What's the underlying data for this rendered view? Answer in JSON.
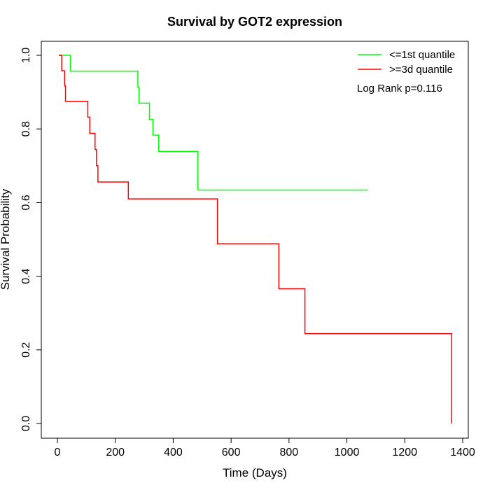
{
  "chart_data": {
    "type": "line",
    "title": "Survival by GOT2 expression",
    "xlabel": "Time (Days)",
    "ylabel": "Survival Probability",
    "xlim": [
      0,
      1400
    ],
    "ylim": [
      0,
      1
    ],
    "x_ticks": [
      "0",
      "200",
      "400",
      "600",
      "800",
      "1000",
      "1200",
      "1400"
    ],
    "y_ticks": [
      "0.0",
      "0.2",
      "0.4",
      "0.6",
      "0.8",
      "1.0"
    ],
    "grid": false,
    "legend_position": "top-right",
    "annotation": "Log Rank p=0.116",
    "series": [
      {
        "name": "<=1st quantile",
        "color": "#00ff00",
        "step": true,
        "x": [
          5,
          45,
          278,
          282,
          318,
          330,
          350,
          485,
          1072
        ],
        "y": [
          1.0,
          0.957,
          0.913,
          0.87,
          0.826,
          0.783,
          0.739,
          0.634,
          0.634
        ]
      },
      {
        "name": ">=3d quantile",
        "color": "#ff0000",
        "step": true,
        "x": [
          5,
          15,
          25,
          28,
          105,
          112,
          130,
          135,
          140,
          245,
          553,
          765,
          855,
          1362,
          1362
        ],
        "y": [
          1.0,
          0.958,
          0.917,
          0.875,
          0.832,
          0.788,
          0.744,
          0.7,
          0.656,
          0.61,
          0.488,
          0.366,
          0.244,
          0.244,
          0.0
        ]
      }
    ]
  }
}
